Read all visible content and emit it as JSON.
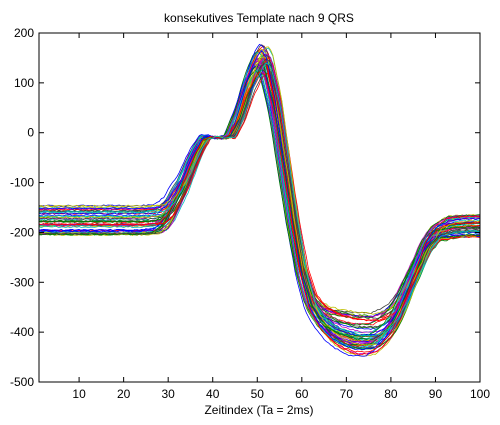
{
  "chart_data": {
    "type": "line",
    "title": "konsekutives Template nach 9 QRS",
    "xlabel": "Zeitindex (Ta = 2ms)",
    "ylabel": "",
    "xlim": [
      1,
      100
    ],
    "ylim": [
      -500,
      200
    ],
    "xticks": [
      10,
      20,
      30,
      40,
      50,
      60,
      70,
      80,
      90,
      100
    ],
    "yticks": [
      200,
      100,
      0,
      -100,
      -200,
      -300,
      -400,
      -500
    ],
    "grid": false,
    "legend": "none",
    "series_count": 60,
    "series_colors": [
      "#0000ff",
      "#008000",
      "#ff0000",
      "#00bfbf",
      "#bf00bf",
      "#bfbf00",
      "#404040"
    ],
    "template_x": [
      1,
      10,
      20,
      25,
      28,
      30,
      33,
      36,
      38,
      40,
      42,
      44,
      46,
      48,
      50,
      51,
      52,
      54,
      56,
      58,
      60,
      62,
      64,
      66,
      68,
      70,
      72,
      74,
      76,
      78,
      80,
      82,
      84,
      86,
      88,
      90,
      93,
      96,
      100
    ],
    "template_mean": [
      -178,
      -178,
      -178,
      -178,
      -175,
      -160,
      -110,
      -45,
      -12,
      -8,
      -12,
      -5,
      40,
      100,
      140,
      150,
      140,
      60,
      -60,
      -180,
      -280,
      -340,
      -365,
      -380,
      -390,
      -395,
      -400,
      -400,
      -400,
      -390,
      -375,
      -345,
      -305,
      -265,
      -225,
      -200,
      -190,
      -187,
      -186
    ],
    "offset_range_baseline": [
      -205,
      -145
    ],
    "peak_range": [
      95,
      168
    ],
    "trough_range": [
      -450,
      -360
    ],
    "end_range": [
      -210,
      -165
    ]
  }
}
